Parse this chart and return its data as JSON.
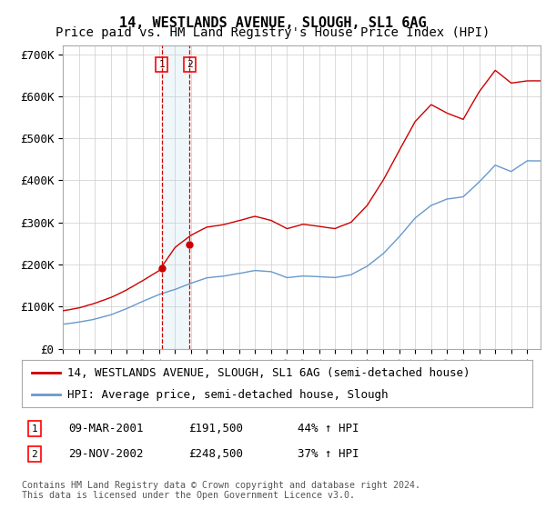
{
  "title": "14, WESTLANDS AVENUE, SLOUGH, SL1 6AG",
  "subtitle": "Price paid vs. HM Land Registry's House Price Index (HPI)",
  "ylim": [
    0,
    720000
  ],
  "yticks": [
    0,
    100000,
    200000,
    300000,
    400000,
    500000,
    600000,
    700000
  ],
  "ytick_labels": [
    "£0",
    "£100K",
    "£200K",
    "£300K",
    "£400K",
    "£500K",
    "£600K",
    "£700K"
  ],
  "sale1_price": 191500,
  "sale2_price": 248500,
  "red_line_color": "#cc0000",
  "blue_line_color": "#6699cc",
  "grid_color": "#cccccc",
  "background_color": "#ffffff",
  "legend_label_red": "14, WESTLANDS AVENUE, SLOUGH, SL1 6AG (semi-detached house)",
  "legend_label_blue": "HPI: Average price, semi-detached house, Slough",
  "table_row1": [
    "1",
    "09-MAR-2001",
    "£191,500",
    "44% ↑ HPI"
  ],
  "table_row2": [
    "2",
    "29-NOV-2002",
    "£248,500",
    "37% ↑ HPI"
  ],
  "footnote": "Contains HM Land Registry data © Crown copyright and database right 2024.\nThis data is licensed under the Open Government Licence v3.0.",
  "title_fontsize": 11,
  "subtitle_fontsize": 10,
  "tick_fontsize": 9,
  "legend_fontsize": 9,
  "table_fontsize": 9,
  "hpi_years": [
    1995,
    1996,
    1997,
    1998,
    1999,
    2000,
    2001,
    2002,
    2003,
    2004,
    2005,
    2006,
    2007,
    2008,
    2009,
    2010,
    2011,
    2012,
    2013,
    2014,
    2015,
    2016,
    2017,
    2018,
    2019,
    2020,
    2021,
    2022,
    2023,
    2024
  ],
  "hpi_vals": [
    58000,
    63000,
    70000,
    80000,
    95000,
    112000,
    128000,
    140000,
    155000,
    168000,
    172000,
    178000,
    185000,
    182000,
    168000,
    172000,
    170000,
    168000,
    175000,
    195000,
    225000,
    265000,
    310000,
    340000,
    355000,
    360000,
    395000,
    435000,
    420000,
    445000
  ],
  "red_years": [
    1995,
    1996,
    1997,
    1998,
    1999,
    2000,
    2001,
    2002,
    2003,
    2004,
    2005,
    2006,
    2007,
    2008,
    2009,
    2010,
    2011,
    2012,
    2013,
    2014,
    2015,
    2016,
    2017,
    2018,
    2019,
    2020,
    2021,
    2022,
    2023,
    2024
  ],
  "red_vals": [
    90000,
    97000,
    108000,
    122000,
    140000,
    162000,
    185000,
    240000,
    270000,
    290000,
    295000,
    305000,
    315000,
    305000,
    285000,
    295000,
    290000,
    285000,
    300000,
    340000,
    400000,
    470000,
    540000,
    580000,
    560000,
    545000,
    610000,
    660000,
    630000,
    635000
  ]
}
